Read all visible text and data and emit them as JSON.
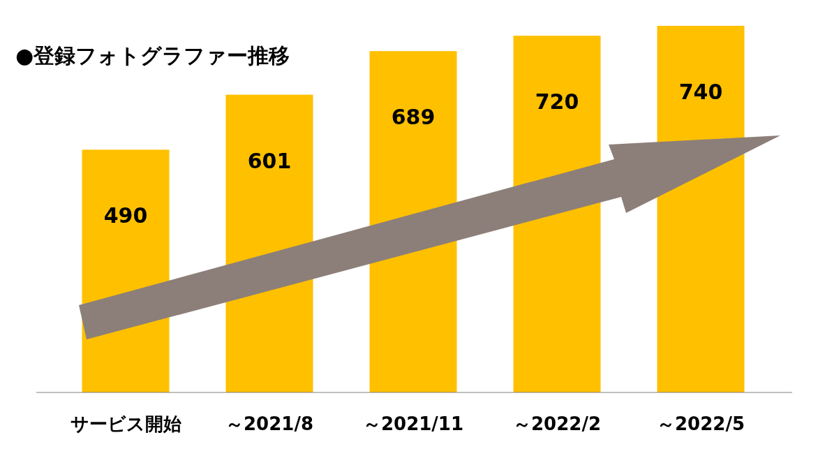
{
  "chart_data": {
    "type": "bar",
    "title": "●登録フォトグラファー推移",
    "categories": [
      "サービス開始",
      "～2021/8",
      "～2021/11",
      "～2022/2",
      "～2022/5"
    ],
    "values": [
      490,
      601,
      689,
      720,
      740
    ],
    "color": "#ffc000",
    "data_labels": true
  }
}
